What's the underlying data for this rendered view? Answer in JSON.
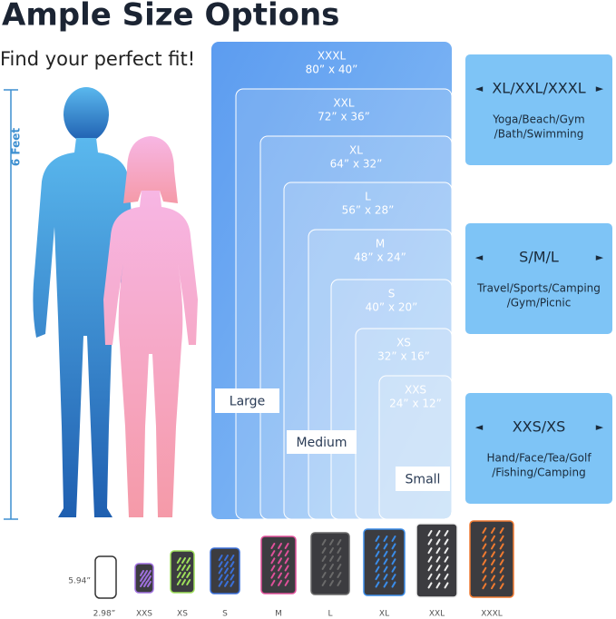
{
  "header": {
    "title": "Ample Size Options",
    "subtitle": "Find your perfect fit!"
  },
  "height_label": "6 Feet",
  "sizes": [
    {
      "name": "XXXL",
      "dims": "80” x 40”"
    },
    {
      "name": "XXL",
      "dims": "72” x 36”"
    },
    {
      "name": "XL",
      "dims": "64” x 32”"
    },
    {
      "name": "L",
      "dims": "56” x 28”"
    },
    {
      "name": "M",
      "dims": "48” x 24”"
    },
    {
      "name": "S",
      "dims": "40” x 20”"
    },
    {
      "name": "XS",
      "dims": "32” x 16”"
    },
    {
      "name": "XXS",
      "dims": "24” x 12”"
    }
  ],
  "groups": [
    "Large",
    "Medium",
    "Small"
  ],
  "panels": [
    {
      "heading": "XL/XXL/XXXL",
      "uses": [
        "Yoga/Beach/Gym",
        "/Bath/Swimming"
      ]
    },
    {
      "heading": "S/M/L",
      "uses": [
        "Travel/Sports/Camping",
        "/Gym/Picnic"
      ]
    },
    {
      "heading": "XXS/XS",
      "uses": [
        "Hand/Face/Tea/Golf",
        "/Fishing/Camping"
      ]
    }
  ],
  "phone": {
    "height": "5.94”",
    "width": "2.98”"
  },
  "pouches": [
    "XXS",
    "XS",
    "S",
    "M",
    "L",
    "XL",
    "XXL",
    "XXXL"
  ]
}
